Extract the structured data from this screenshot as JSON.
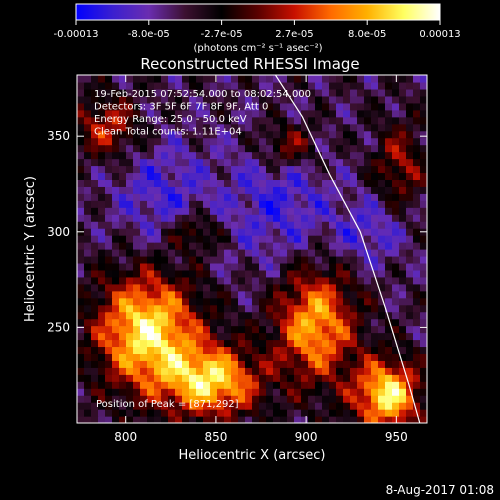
{
  "colorbar": {
    "tick_labels": [
      "-0.00013",
      "-8.0e-05",
      "-2.7e-05",
      "2.7e-05",
      "8.0e-05",
      "0.00013"
    ],
    "unit_label": "(photons cm⁻² s⁻¹ asec⁻²)",
    "range": [
      -0.00013,
      0.00013
    ],
    "colormap": [
      "#0000ff",
      "#3a1fd0",
      "#6a2db0",
      "#3c1030",
      "#000000",
      "#5a0000",
      "#c81000",
      "#ff6a00",
      "#ffb000",
      "#ffff60",
      "#ffffff"
    ]
  },
  "chart_data": {
    "type": "heatmap",
    "title": "Reconstructed RHESSI Image",
    "xlabel": "Heliocentric X (arcsec)",
    "ylabel": "Heliocentric Y (arcsec)",
    "xlim": [
      773,
      967
    ],
    "ylim": [
      200,
      382
    ],
    "x_ticks": [
      800,
      850,
      900,
      950
    ],
    "y_ticks": [
      250,
      300,
      350
    ],
    "annotations": [
      "19-Feb-2015 07:52:54.000  to 08:02:54.000",
      "Detectors: 3F 5F 6F 7F 8F 9F, Att 0",
      "Energy Range: 25.0 - 50.0 keV",
      "Clean      Total counts: 1.11E+04"
    ],
    "peak_label": "Position of Peak = [871,292]",
    "peak_position": [
      871,
      292
    ],
    "limb_curve": [
      [
        883,
        382
      ],
      [
        898,
        360
      ],
      [
        913,
        330
      ],
      [
        930,
        300
      ],
      [
        944,
        260
      ],
      [
        957,
        220
      ],
      [
        963,
        200
      ]
    ],
    "hot_regions": [
      {
        "x": 812,
        "y": 248,
        "sx": 28,
        "sy": 30,
        "amp": 1.1
      },
      {
        "x": 848,
        "y": 222,
        "sx": 26,
        "sy": 18,
        "amp": 1.0
      },
      {
        "x": 905,
        "y": 252,
        "sx": 22,
        "sy": 30,
        "amp": 0.9
      },
      {
        "x": 945,
        "y": 215,
        "sx": 18,
        "sy": 18,
        "amp": 1.1
      },
      {
        "x": 790,
        "y": 355,
        "sx": 18,
        "sy": 16,
        "amp": 0.55
      },
      {
        "x": 890,
        "y": 345,
        "sx": 16,
        "sy": 12,
        "amp": 0.5
      },
      {
        "x": 838,
        "y": 300,
        "sx": 14,
        "sy": 10,
        "amp": 0.45
      },
      {
        "x": 952,
        "y": 335,
        "sx": 14,
        "sy": 22,
        "amp": 0.45
      }
    ],
    "cold_regions": [
      {
        "x": 885,
        "y": 315,
        "sx": 30,
        "sy": 35,
        "amp": 0.55
      },
      {
        "x": 820,
        "y": 320,
        "sx": 28,
        "sy": 30,
        "amp": 0.5
      },
      {
        "x": 935,
        "y": 300,
        "sx": 20,
        "sy": 18,
        "amp": 0.5
      }
    ]
  },
  "footer": {
    "date": "8-Aug-2017 01:08"
  }
}
